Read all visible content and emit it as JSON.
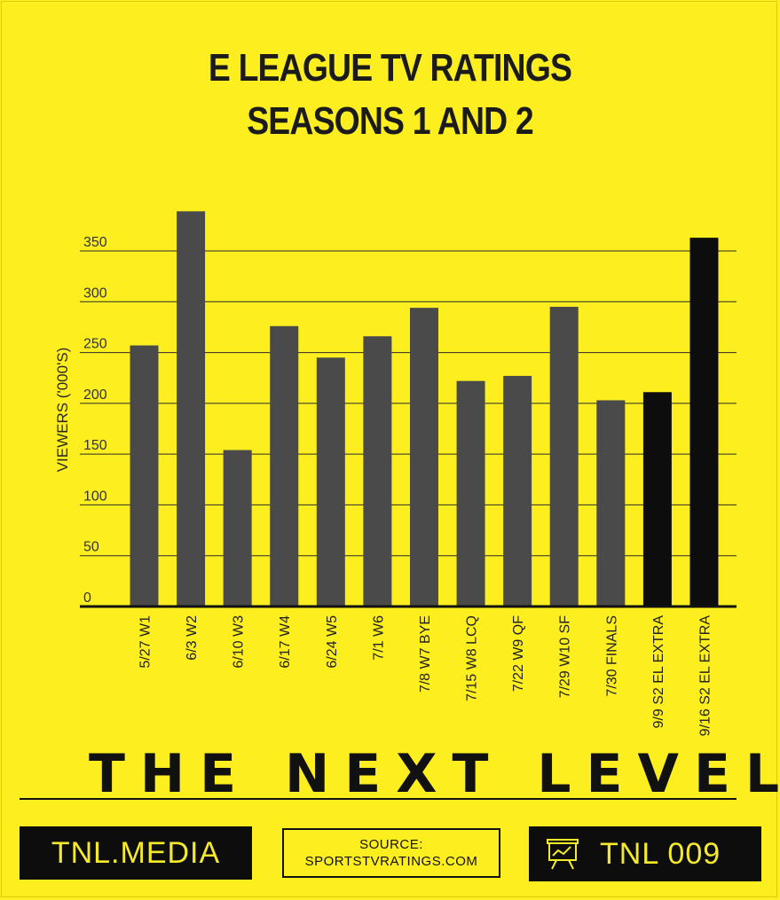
{
  "title_line1": "E LEAGUE TV RATINGS",
  "title_line2": "SEASONS 1 AND 2",
  "chart_data": {
    "type": "bar",
    "ylabel": "VIEWERS ('000'S)",
    "xlabel": "",
    "ylim": [
      0,
      400
    ],
    "yticks": [
      0,
      50,
      100,
      150,
      200,
      250,
      300,
      350
    ],
    "grid": true,
    "categories": [
      "5/27 W1",
      "6/3 W2",
      "6/10 W3",
      "6/17 W4",
      "6/24 W5",
      "7/1 W6",
      "7/8 W7 BYE",
      "7/15 W8 LCQ",
      "7/22 W9 QF",
      "7/29 W10 SF",
      "7/30 FINALS",
      "9/9 S2 EL EXTRA",
      "9/16 S2 EL EXTRA"
    ],
    "values": [
      257,
      389,
      154,
      276,
      245,
      266,
      294,
      222,
      227,
      295,
      203,
      211,
      363
    ],
    "bar_colors": [
      "#4a4a4a",
      "#4a4a4a",
      "#4a4a4a",
      "#4a4a4a",
      "#4a4a4a",
      "#4a4a4a",
      "#4a4a4a",
      "#4a4a4a",
      "#4a4a4a",
      "#4a4a4a",
      "#4a4a4a",
      "#0d0d0d",
      "#0d0d0d"
    ]
  },
  "brand_text": "THE NEXT LEVEL",
  "footer": {
    "site": "TNL.MEDIA",
    "source_line1": "SOURCE:",
    "source_line2": "SPORTSTVRATINGS.COM",
    "issue": "TNL 009",
    "issue_icon": "presentation-board-icon"
  },
  "colors": {
    "background": "#fdef1f",
    "bar_season1": "#4a4a4a",
    "bar_season2": "#0d0d0d",
    "footer_box": "#0d0d0d",
    "footer_text": "#f4ea2a"
  }
}
